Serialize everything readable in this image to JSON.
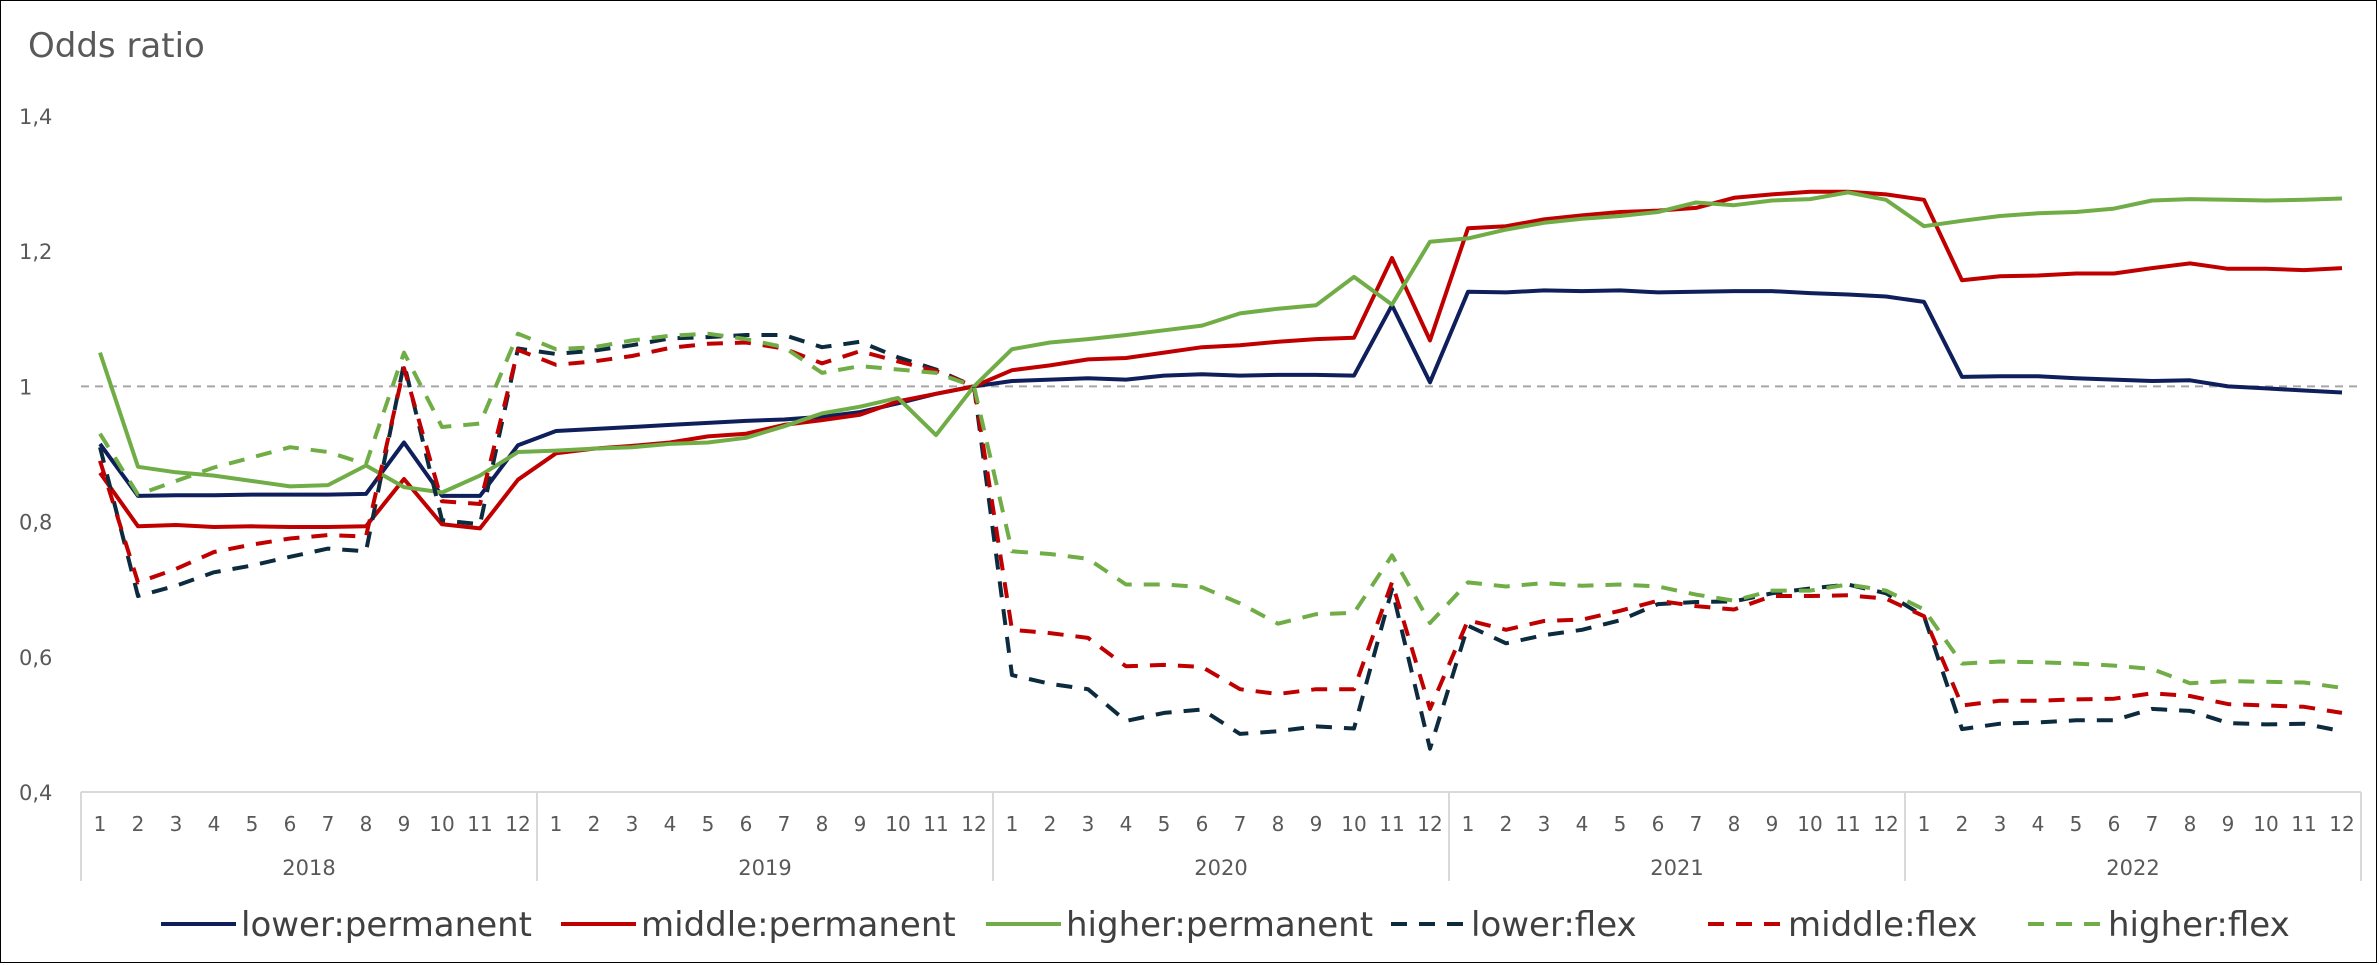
{
  "chart_data": {
    "type": "line",
    "title": "Odds ratio",
    "ylim": [
      0.4,
      1.4
    ],
    "yticks": [
      "0,4",
      "0,6",
      "0,8",
      "1",
      "1,2",
      "1,4"
    ],
    "reference_line": 1,
    "years": [
      "2018",
      "2019",
      "2020",
      "2021",
      "2022"
    ],
    "month_labels": [
      "1",
      "2",
      "3",
      "4",
      "5",
      "6",
      "7",
      "8",
      "9",
      "10",
      "11",
      "12"
    ],
    "grid": false,
    "legend_position": "bottom",
    "series": [
      {
        "name": "lower:permanent",
        "color": "#0e1f5b",
        "dash": "solid",
        "values": [
          0.915,
          0.838,
          0.839,
          0.839,
          0.84,
          0.84,
          0.84,
          0.841,
          0.917,
          0.838,
          0.838,
          0.913,
          0.934,
          0.937,
          0.94,
          0.943,
          0.946,
          0.949,
          0.951,
          0.955,
          0.962,
          0.975,
          0.989,
          1.0,
          1.008,
          1.01,
          1.012,
          1.01,
          1.016,
          1.018,
          1.016,
          1.017,
          1.017,
          1.016,
          1.12,
          1.006,
          1.14,
          1.139,
          1.142,
          1.141,
          1.142,
          1.139,
          1.14,
          1.141,
          1.141,
          1.138,
          1.136,
          1.133,
          1.125,
          1.014,
          1.015,
          1.015,
          1.012,
          1.01,
          1.008,
          1.009,
          1.0,
          0.997,
          0.994,
          0.991
        ]
      },
      {
        "name": "middle:permanent",
        "color": "#c00000",
        "dash": "solid",
        "values": [
          0.872,
          0.793,
          0.795,
          0.792,
          0.793,
          0.792,
          0.792,
          0.793,
          0.863,
          0.796,
          0.79,
          0.862,
          0.901,
          0.908,
          0.912,
          0.917,
          0.926,
          0.93,
          0.943,
          0.95,
          0.958,
          0.978,
          0.989,
          1.0,
          1.024,
          1.031,
          1.04,
          1.042,
          1.05,
          1.058,
          1.061,
          1.066,
          1.07,
          1.072,
          1.19,
          1.068,
          1.234,
          1.237,
          1.247,
          1.253,
          1.258,
          1.26,
          1.264,
          1.279,
          1.284,
          1.288,
          1.288,
          1.284,
          1.276,
          1.157,
          1.163,
          1.164,
          1.167,
          1.167,
          1.175,
          1.182,
          1.174,
          1.174,
          1.172,
          1.175
        ]
      },
      {
        "name": "higher:permanent",
        "color": "#70ad47",
        "dash": "solid",
        "values": [
          1.05,
          0.881,
          0.873,
          0.868,
          0.86,
          0.852,
          0.854,
          0.883,
          0.851,
          0.843,
          0.868,
          0.903,
          0.905,
          0.908,
          0.91,
          0.915,
          0.917,
          0.924,
          0.941,
          0.96,
          0.97,
          0.983,
          0.928,
          1.0,
          1.055,
          1.065,
          1.07,
          1.076,
          1.083,
          1.09,
          1.108,
          1.115,
          1.12,
          1.162,
          1.121,
          1.214,
          1.219,
          1.232,
          1.242,
          1.248,
          1.252,
          1.258,
          1.272,
          1.268,
          1.275,
          1.277,
          1.287,
          1.276,
          1.237,
          1.245,
          1.252,
          1.256,
          1.258,
          1.263,
          1.275,
          1.277,
          1.276,
          1.275,
          1.276,
          1.278
        ]
      },
      {
        "name": "lower:flex",
        "color": "#0d2b3e",
        "dash": "dashed",
        "values": [
          0.91,
          0.69,
          0.705,
          0.725,
          0.735,
          0.748,
          0.76,
          0.756,
          1.034,
          0.802,
          0.796,
          1.056,
          1.048,
          1.053,
          1.061,
          1.071,
          1.073,
          1.076,
          1.076,
          1.058,
          1.066,
          1.043,
          1.025,
          1.0,
          0.573,
          0.56,
          0.552,
          0.505,
          0.517,
          0.522,
          0.486,
          0.49,
          0.497,
          0.494,
          0.7,
          0.464,
          0.646,
          0.62,
          0.632,
          0.64,
          0.654,
          0.678,
          0.681,
          0.682,
          0.694,
          0.701,
          0.707,
          0.694,
          0.66,
          0.493,
          0.501,
          0.503,
          0.506,
          0.506,
          0.523,
          0.52,
          0.502,
          0.5,
          0.501,
          0.49
        ]
      },
      {
        "name": "middle:flex",
        "color": "#c00000",
        "dash": "dashed",
        "values": [
          0.89,
          0.71,
          0.73,
          0.755,
          0.766,
          0.775,
          0.78,
          0.778,
          1.027,
          0.83,
          0.826,
          1.054,
          1.032,
          1.037,
          1.045,
          1.057,
          1.063,
          1.065,
          1.056,
          1.034,
          1.052,
          1.037,
          1.023,
          1.0,
          0.64,
          0.635,
          0.628,
          0.586,
          0.588,
          0.585,
          0.552,
          0.545,
          0.552,
          0.552,
          0.71,
          0.523,
          0.654,
          0.64,
          0.653,
          0.655,
          0.668,
          0.683,
          0.675,
          0.67,
          0.69,
          0.69,
          0.691,
          0.686,
          0.66,
          0.528,
          0.535,
          0.535,
          0.537,
          0.538,
          0.546,
          0.542,
          0.53,
          0.528,
          0.526,
          0.517
        ]
      },
      {
        "name": "higher:flex",
        "color": "#70ad47",
        "dash": "dashed",
        "values": [
          0.93,
          0.84,
          0.86,
          0.88,
          0.895,
          0.91,
          0.903,
          0.885,
          1.05,
          0.94,
          0.945,
          1.078,
          1.055,
          1.058,
          1.068,
          1.075,
          1.078,
          1.07,
          1.058,
          1.02,
          1.03,
          1.025,
          1.02,
          1.0,
          0.756,
          0.752,
          0.745,
          0.707,
          0.707,
          0.703,
          0.679,
          0.649,
          0.663,
          0.665,
          0.75,
          0.65,
          0.71,
          0.704,
          0.709,
          0.705,
          0.707,
          0.704,
          0.692,
          0.683,
          0.698,
          0.698,
          0.707,
          0.698,
          0.67,
          0.59,
          0.593,
          0.592,
          0.59,
          0.587,
          0.582,
          0.561,
          0.564,
          0.563,
          0.562,
          0.554
        ]
      }
    ]
  }
}
